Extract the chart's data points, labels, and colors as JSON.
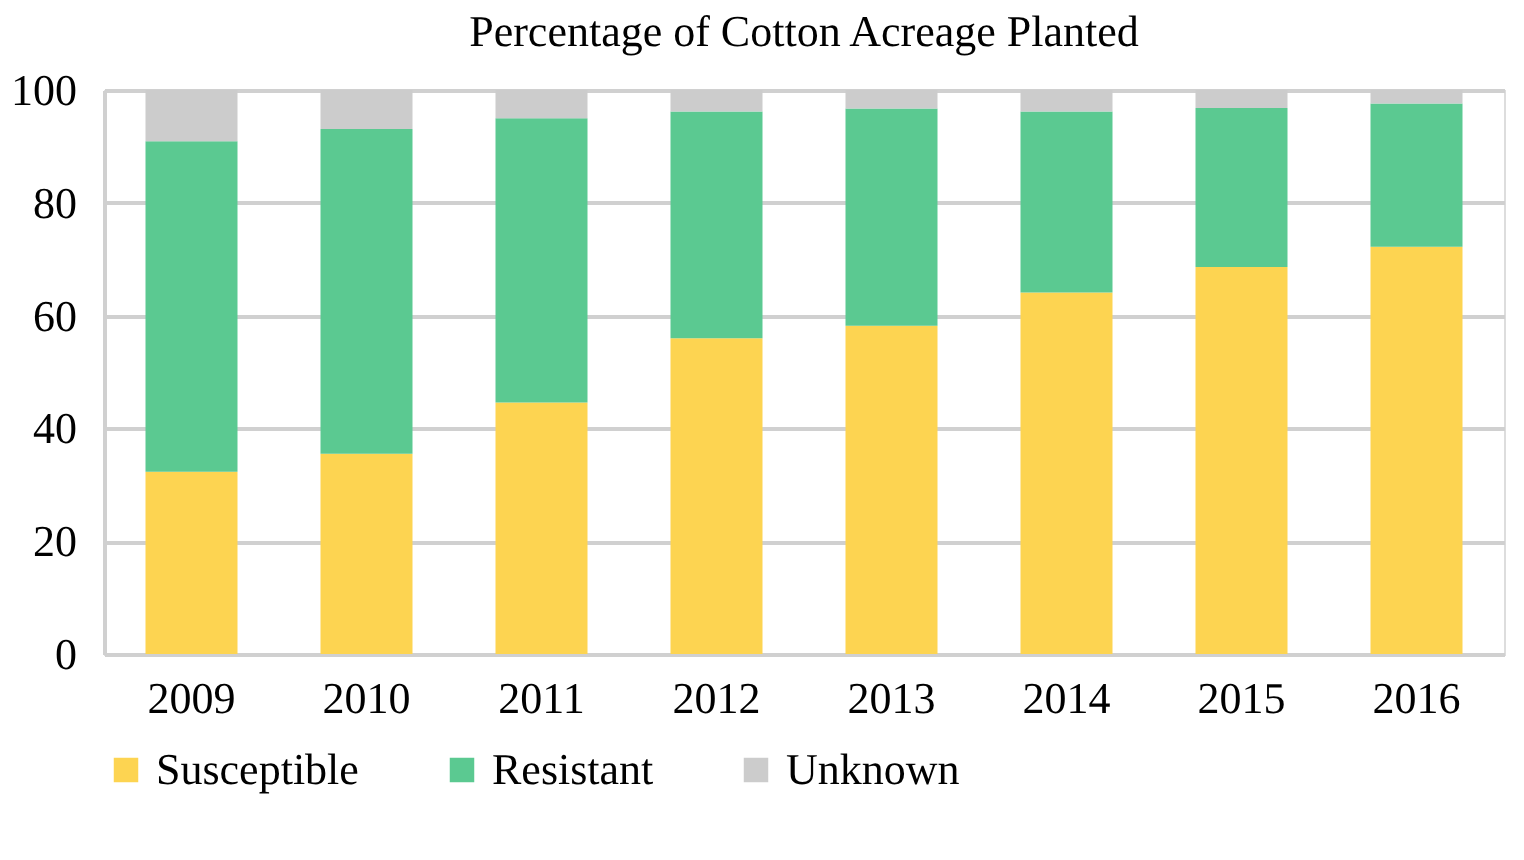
{
  "chart_data": {
    "type": "bar",
    "title": "Percentage of Cotton Acreage Planted",
    "categories": [
      "2009",
      "2010",
      "2011",
      "2012",
      "2013",
      "2014",
      "2015",
      "2016"
    ],
    "stacked": true,
    "series": [
      {
        "name": "Susceptible",
        "color": "#fdd451",
        "values": [
          32.3,
          35.5,
          44.6,
          56.0,
          58.2,
          64.1,
          68.6,
          72.2
        ]
      },
      {
        "name": "Resistant",
        "color": "#5bc991",
        "values": [
          58.6,
          57.6,
          50.4,
          40.2,
          38.5,
          32.1,
          28.2,
          25.4
        ]
      },
      {
        "name": "Unknown",
        "color": "#cccccc",
        "values": [
          9.1,
          6.9,
          5.0,
          3.8,
          3.3,
          3.8,
          3.2,
          2.4
        ]
      }
    ],
    "ylim": [
      0,
      100
    ],
    "yticks": [
      0,
      20,
      40,
      60,
      80,
      100
    ],
    "grid": "y",
    "legend": "bottom"
  }
}
